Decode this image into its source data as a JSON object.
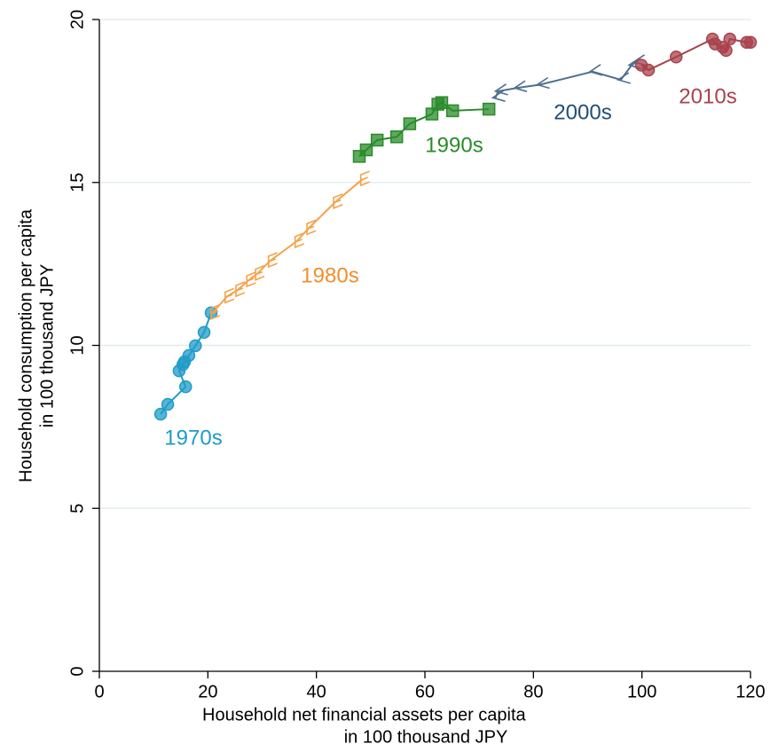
{
  "chart_data": {
    "type": "scatter",
    "xlabel": [
      "Household net financial assets per capita",
      "in 100 thousand JPY"
    ],
    "ylabel": [
      "Household consumption per capita",
      "in 100 thousand JPY"
    ],
    "xlim": [
      0,
      120
    ],
    "ylim": [
      0,
      20
    ],
    "xticks": [
      0,
      20,
      40,
      60,
      80,
      100,
      120
    ],
    "yticks": [
      0,
      5,
      10,
      15,
      20
    ],
    "grid": true,
    "series": [
      {
        "name": "1970s",
        "color": "#1f9bc8",
        "marker": "circle",
        "x": [
          11.3,
          12.6,
          15.9,
          14.7,
          15.4,
          15.7,
          16.5,
          17.7,
          19.3,
          20.6
        ],
        "values": [
          7.89,
          8.19,
          8.73,
          9.22,
          9.41,
          9.5,
          9.69,
          9.99,
          10.4,
          11.0
        ]
      },
      {
        "name": "1980s",
        "color": "#f5a24a",
        "marker": "bracket",
        "x": [
          20.9,
          23.5,
          25.5,
          27.5,
          29.1,
          31.5,
          36.4,
          38.6,
          43.5,
          48.5
        ],
        "values": [
          11.0,
          11.5,
          11.7,
          12.0,
          12.2,
          12.6,
          13.2,
          13.6,
          14.4,
          15.1
        ]
      },
      {
        "name": "1990s",
        "color": "#2a8b2a",
        "marker": "square",
        "x": [
          47.9,
          49.2,
          51.2,
          54.8,
          57.2,
          61.3,
          62.4,
          63.1,
          65.1,
          71.8
        ],
        "values": [
          15.8,
          16.0,
          16.3,
          16.4,
          16.8,
          17.1,
          17.4,
          17.45,
          17.2,
          17.25
        ]
      },
      {
        "name": "2000s",
        "color": "#4f6f8f",
        "marker": "arrow",
        "x": [
          73.0,
          73.5,
          77.0,
          81.2,
          90.9,
          96.1,
          98.1,
          99.0
        ],
        "values": [
          17.6,
          17.8,
          17.9,
          18.0,
          18.4,
          18.15,
          18.6,
          18.7
        ]
      },
      {
        "name": "2010s",
        "color": "#a8424b",
        "marker": "circle",
        "x": [
          99.9,
          101.2,
          106.3,
          113.0,
          113.5,
          114.9,
          115.5,
          116.2,
          119.3,
          120.0
        ],
        "values": [
          18.6,
          18.45,
          18.85,
          19.4,
          19.25,
          19.15,
          19.05,
          19.4,
          19.3,
          19.3
        ]
      }
    ]
  }
}
